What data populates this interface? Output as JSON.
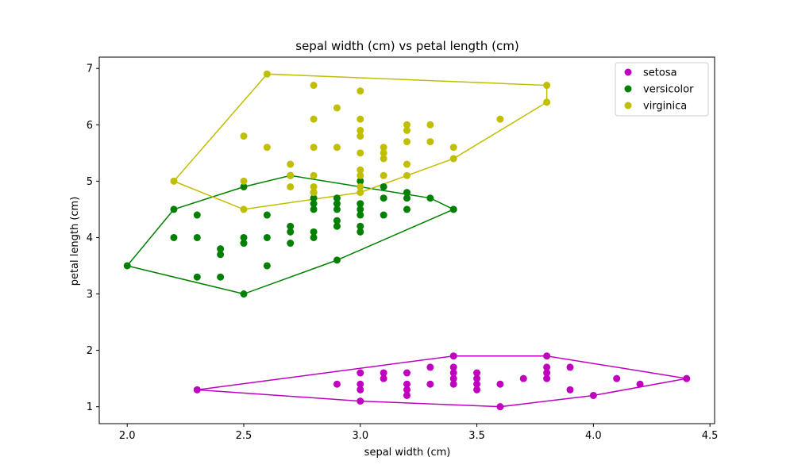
{
  "chart_data": {
    "type": "scatter",
    "title": "sepal width (cm) vs petal length (cm)",
    "xlabel": "sepal width (cm)",
    "ylabel": "petal length (cm)",
    "xlim": [
      1.88,
      4.52
    ],
    "ylim": [
      0.7,
      7.2
    ],
    "xticks": [
      2.0,
      2.5,
      3.0,
      3.5,
      4.0,
      4.5
    ],
    "yticks": [
      1,
      2,
      3,
      4,
      5,
      6,
      7
    ],
    "grid": false,
    "legend": "top-right",
    "series": [
      {
        "name": "setosa",
        "color": "#bf00bf",
        "points": [
          [
            2.3,
            1.3
          ],
          [
            2.9,
            1.4
          ],
          [
            3.0,
            1.6
          ],
          [
            3.0,
            1.4
          ],
          [
            3.0,
            1.3
          ],
          [
            3.0,
            1.1
          ],
          [
            3.1,
            1.6
          ],
          [
            3.1,
            1.5
          ],
          [
            3.2,
            1.6
          ],
          [
            3.2,
            1.4
          ],
          [
            3.2,
            1.3
          ],
          [
            3.2,
            1.2
          ],
          [
            3.3,
            1.7
          ],
          [
            3.3,
            1.4
          ],
          [
            3.4,
            1.9
          ],
          [
            3.4,
            1.7
          ],
          [
            3.4,
            1.6
          ],
          [
            3.4,
            1.5
          ],
          [
            3.4,
            1.4
          ],
          [
            3.5,
            1.6
          ],
          [
            3.5,
            1.5
          ],
          [
            3.5,
            1.4
          ],
          [
            3.5,
            1.3
          ],
          [
            3.6,
            1.4
          ],
          [
            3.6,
            1.0
          ],
          [
            3.7,
            1.5
          ],
          [
            3.8,
            1.9
          ],
          [
            3.8,
            1.7
          ],
          [
            3.8,
            1.6
          ],
          [
            3.8,
            1.5
          ],
          [
            3.9,
            1.7
          ],
          [
            3.9,
            1.3
          ],
          [
            4.0,
            1.2
          ],
          [
            4.1,
            1.5
          ],
          [
            4.2,
            1.4
          ],
          [
            4.4,
            1.5
          ]
        ],
        "hull": [
          [
            2.3,
            1.3
          ],
          [
            3.0,
            1.1
          ],
          [
            3.6,
            1.0
          ],
          [
            4.0,
            1.2
          ],
          [
            4.4,
            1.5
          ],
          [
            3.8,
            1.9
          ],
          [
            3.4,
            1.9
          ],
          [
            2.3,
            1.3
          ]
        ]
      },
      {
        "name": "versicolor",
        "color": "#008000",
        "points": [
          [
            2.0,
            3.5
          ],
          [
            2.2,
            4.5
          ],
          [
            2.2,
            4.0
          ],
          [
            2.3,
            4.4
          ],
          [
            2.3,
            4.0
          ],
          [
            2.3,
            3.3
          ],
          [
            2.4,
            3.8
          ],
          [
            2.4,
            3.7
          ],
          [
            2.4,
            3.3
          ],
          [
            2.5,
            4.9
          ],
          [
            2.5,
            4.0
          ],
          [
            2.5,
            3.9
          ],
          [
            2.5,
            3.0
          ],
          [
            2.6,
            4.4
          ],
          [
            2.6,
            4.0
          ],
          [
            2.6,
            3.5
          ],
          [
            2.7,
            5.1
          ],
          [
            2.7,
            4.2
          ],
          [
            2.7,
            4.1
          ],
          [
            2.7,
            3.9
          ],
          [
            2.8,
            4.8
          ],
          [
            2.8,
            4.7
          ],
          [
            2.8,
            4.6
          ],
          [
            2.8,
            4.5
          ],
          [
            2.8,
            4.1
          ],
          [
            2.8,
            4.0
          ],
          [
            2.9,
            4.7
          ],
          [
            2.9,
            4.6
          ],
          [
            2.9,
            4.5
          ],
          [
            2.9,
            4.3
          ],
          [
            2.9,
            4.2
          ],
          [
            2.9,
            3.6
          ],
          [
            3.0,
            5.0
          ],
          [
            3.0,
            4.6
          ],
          [
            3.0,
            4.5
          ],
          [
            3.0,
            4.4
          ],
          [
            3.0,
            4.2
          ],
          [
            3.0,
            4.1
          ],
          [
            3.1,
            4.9
          ],
          [
            3.1,
            4.7
          ],
          [
            3.1,
            4.4
          ],
          [
            3.2,
            4.8
          ],
          [
            3.2,
            4.7
          ],
          [
            3.2,
            4.5
          ],
          [
            3.3,
            4.7
          ],
          [
            3.4,
            4.5
          ]
        ],
        "hull": [
          [
            2.0,
            3.5
          ],
          [
            2.5,
            3.0
          ],
          [
            2.9,
            3.6
          ],
          [
            3.4,
            4.5
          ],
          [
            3.3,
            4.7
          ],
          [
            2.7,
            5.1
          ],
          [
            2.5,
            4.9
          ],
          [
            2.2,
            4.5
          ],
          [
            2.0,
            3.5
          ]
        ]
      },
      {
        "name": "virginica",
        "color": "#bfbf00",
        "points": [
          [
            2.2,
            5.0
          ],
          [
            2.5,
            5.8
          ],
          [
            2.5,
            5.0
          ],
          [
            2.5,
            4.5
          ],
          [
            2.6,
            6.9
          ],
          [
            2.6,
            5.6
          ],
          [
            2.7,
            5.3
          ],
          [
            2.7,
            5.1
          ],
          [
            2.7,
            4.9
          ],
          [
            2.8,
            6.7
          ],
          [
            2.8,
            6.1
          ],
          [
            2.8,
            5.6
          ],
          [
            2.8,
            5.1
          ],
          [
            2.8,
            4.9
          ],
          [
            2.8,
            4.8
          ],
          [
            2.9,
            6.3
          ],
          [
            2.9,
            5.6
          ],
          [
            3.0,
            6.6
          ],
          [
            3.0,
            6.1
          ],
          [
            3.0,
            5.9
          ],
          [
            3.0,
            5.8
          ],
          [
            3.0,
            5.5
          ],
          [
            3.0,
            5.2
          ],
          [
            3.0,
            5.1
          ],
          [
            3.0,
            4.9
          ],
          [
            3.0,
            4.8
          ],
          [
            3.1,
            5.6
          ],
          [
            3.1,
            5.5
          ],
          [
            3.1,
            5.4
          ],
          [
            3.1,
            5.1
          ],
          [
            3.2,
            6.0
          ],
          [
            3.2,
            5.9
          ],
          [
            3.2,
            5.7
          ],
          [
            3.2,
            5.3
          ],
          [
            3.2,
            5.1
          ],
          [
            3.3,
            6.0
          ],
          [
            3.3,
            5.7
          ],
          [
            3.4,
            5.6
          ],
          [
            3.4,
            5.4
          ],
          [
            3.6,
            6.1
          ],
          [
            3.8,
            6.7
          ],
          [
            3.8,
            6.4
          ]
        ],
        "hull": [
          [
            2.2,
            5.0
          ],
          [
            2.5,
            4.5
          ],
          [
            3.0,
            4.8
          ],
          [
            3.4,
            5.4
          ],
          [
            3.8,
            6.4
          ],
          [
            3.8,
            6.7
          ],
          [
            2.6,
            6.9
          ],
          [
            2.2,
            5.0
          ]
        ]
      }
    ]
  }
}
